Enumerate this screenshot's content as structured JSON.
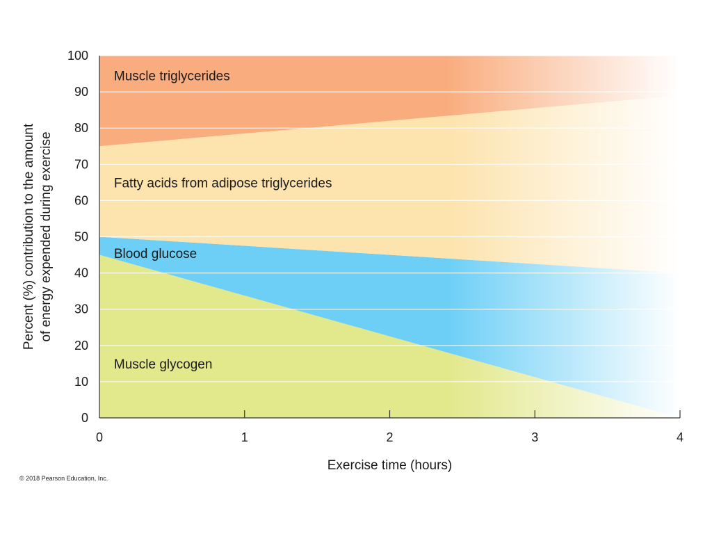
{
  "chart_data": {
    "type": "area",
    "stacked": true,
    "xlabel": "Exercise time (hours)",
    "ylabel": "Percent (%) contribution to the amount of energy expended during exercise",
    "ylabel_lines": [
      "Percent (%) contribution to the amount",
      "of energy expended during exercise"
    ],
    "xlim": [
      0,
      4
    ],
    "ylim": [
      0,
      100
    ],
    "x_ticks": [
      0,
      1,
      2,
      3,
      4
    ],
    "y_ticks": [
      0,
      10,
      20,
      30,
      40,
      50,
      60,
      70,
      80,
      90,
      100
    ],
    "grid": "horizontal",
    "legend": "none",
    "x": [
      0,
      4
    ],
    "series": [
      {
        "name": "Muscle glycogen",
        "values": [
          45,
          0
        ],
        "color": "#e2e88c"
      },
      {
        "name": "Blood glucose",
        "values": [
          5,
          40
        ],
        "color": "#6dcff6"
      },
      {
        "name": "Fatty acids from adipose triglycerides",
        "values": [
          25,
          49
        ],
        "color": "#fde3ad"
      },
      {
        "name": "Muscle triglycerides",
        "values": [
          25,
          11
        ],
        "color": "#f9ad7e"
      }
    ],
    "series_label_anchor": [
      {
        "x": 0.1,
        "y": 15
      },
      {
        "x": 0.1,
        "y": 45.5
      },
      {
        "x": 0.1,
        "y": 65
      },
      {
        "x": 0.1,
        "y": 94.5
      }
    ]
  },
  "copyright": "© 2018 Pearson Education, Inc."
}
